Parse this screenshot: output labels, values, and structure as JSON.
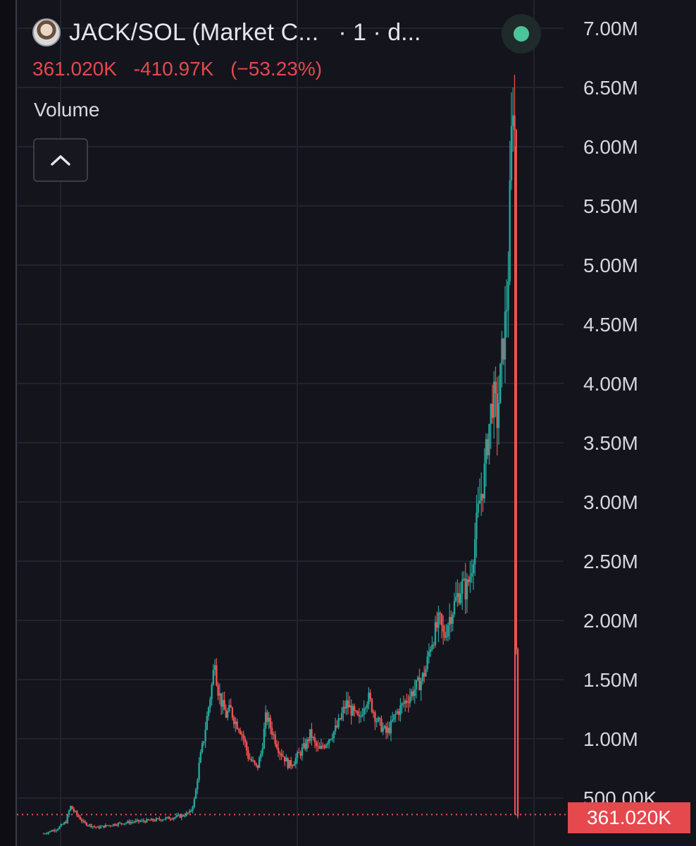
{
  "header": {
    "symbol": "JACK/SOL (Market C...",
    "interval": "· 1 · d...",
    "avatar_icon": "user-avatar-icon",
    "status_color": "#4cc49a"
  },
  "price_info": {
    "last": "361.020K",
    "change": "-410.97K",
    "change_pct": "(−53.23%)",
    "color": "#e5484d"
  },
  "volume": {
    "label": "Volume",
    "toggle_icon": "chevron-up-icon"
  },
  "price_tag": "361.020K",
  "chart_data": {
    "type": "candlestick",
    "title": "JACK/SOL (Market C...",
    "ylabel": "",
    "xlabel": "",
    "ylim": [
      0,
      7300000
    ],
    "y_ticks": [
      {
        "value": 7000000,
        "label": "7.00M"
      },
      {
        "value": 6500000,
        "label": "6.50M"
      },
      {
        "value": 6000000,
        "label": "6.00M"
      },
      {
        "value": 5500000,
        "label": "5.50M"
      },
      {
        "value": 5000000,
        "label": "5.00M"
      },
      {
        "value": 4500000,
        "label": "4.50M"
      },
      {
        "value": 4000000,
        "label": "4.00M"
      },
      {
        "value": 3500000,
        "label": "3.50M"
      },
      {
        "value": 3000000,
        "label": "3.00M"
      },
      {
        "value": 2500000,
        "label": "2.50M"
      },
      {
        "value": 2000000,
        "label": "2.00M"
      },
      {
        "value": 1500000,
        "label": "1.50M"
      },
      {
        "value": 1000000,
        "label": "1.00M"
      },
      {
        "value": 500000,
        "label": "500.00K"
      }
    ],
    "last_price": 361020,
    "up_color": "#26a69a",
    "down_color": "#ef5350",
    "price_path": [
      [
        0,
        200000
      ],
      [
        3,
        240000
      ],
      [
        5,
        300000
      ],
      [
        6,
        430000
      ],
      [
        7,
        380000
      ],
      [
        9,
        290000
      ],
      [
        12,
        250000
      ],
      [
        16,
        280000
      ],
      [
        20,
        300000
      ],
      [
        24,
        310000
      ],
      [
        28,
        330000
      ],
      [
        31,
        350000
      ],
      [
        33,
        380000
      ],
      [
        34,
        500000
      ],
      [
        35,
        800000
      ],
      [
        36,
        1000000
      ],
      [
        37,
        1250000
      ],
      [
        38,
        1500000
      ],
      [
        38.5,
        1700000
      ],
      [
        39,
        1450000
      ],
      [
        40,
        1300000
      ],
      [
        41,
        1200000
      ],
      [
        42,
        1250000
      ],
      [
        43,
        1150000
      ],
      [
        44,
        1100000
      ],
      [
        45,
        1000000
      ],
      [
        46,
        850000
      ],
      [
        47,
        800000
      ],
      [
        48,
        750000
      ],
      [
        49,
        900000
      ],
      [
        50,
        1200000
      ],
      [
        51,
        1100000
      ],
      [
        52,
        1000000
      ],
      [
        53,
        900000
      ],
      [
        54,
        850000
      ],
      [
        55,
        780000
      ],
      [
        56,
        800000
      ],
      [
        57,
        850000
      ],
      [
        58,
        900000
      ],
      [
        59,
        950000
      ],
      [
        60,
        1050000
      ],
      [
        61,
        950000
      ],
      [
        62,
        900000
      ],
      [
        63,
        950000
      ],
      [
        64,
        1000000
      ],
      [
        65,
        1050000
      ],
      [
        66,
        1100000
      ],
      [
        67,
        1200000
      ],
      [
        68,
        1300000
      ],
      [
        69,
        1250000
      ],
      [
        70,
        1200000
      ],
      [
        71,
        1150000
      ],
      [
        72,
        1300000
      ],
      [
        73,
        1350000
      ],
      [
        74,
        1250000
      ],
      [
        75,
        1150000
      ],
      [
        76,
        1100000
      ],
      [
        77,
        1050000
      ],
      [
        78,
        1100000
      ],
      [
        79,
        1200000
      ],
      [
        80,
        1250000
      ],
      [
        81,
        1300000
      ],
      [
        82,
        1350000
      ],
      [
        83,
        1400000
      ],
      [
        84,
        1450000
      ],
      [
        85,
        1500000
      ],
      [
        86,
        1600000
      ],
      [
        87,
        1800000
      ],
      [
        88,
        1900000
      ],
      [
        89,
        2000000
      ],
      [
        90,
        1850000
      ],
      [
        91,
        2000000
      ],
      [
        92,
        2100000
      ],
      [
        93,
        2200000
      ],
      [
        94,
        2300000
      ],
      [
        95,
        2250000
      ],
      [
        96,
        2400000
      ],
      [
        97,
        2700000
      ],
      [
        98,
        3000000
      ],
      [
        99,
        3200000
      ],
      [
        100,
        3600000
      ],
      [
        101,
        3900000
      ],
      [
        102,
        3700000
      ],
      [
        103,
        4200000
      ],
      [
        104,
        4600000
      ],
      [
        104.5,
        5000000
      ],
      [
        105,
        5800000
      ],
      [
        105.5,
        6500000
      ],
      [
        106,
        6000000
      ],
      [
        106.3,
        800000
      ],
      [
        106.6,
        361020
      ]
    ]
  }
}
